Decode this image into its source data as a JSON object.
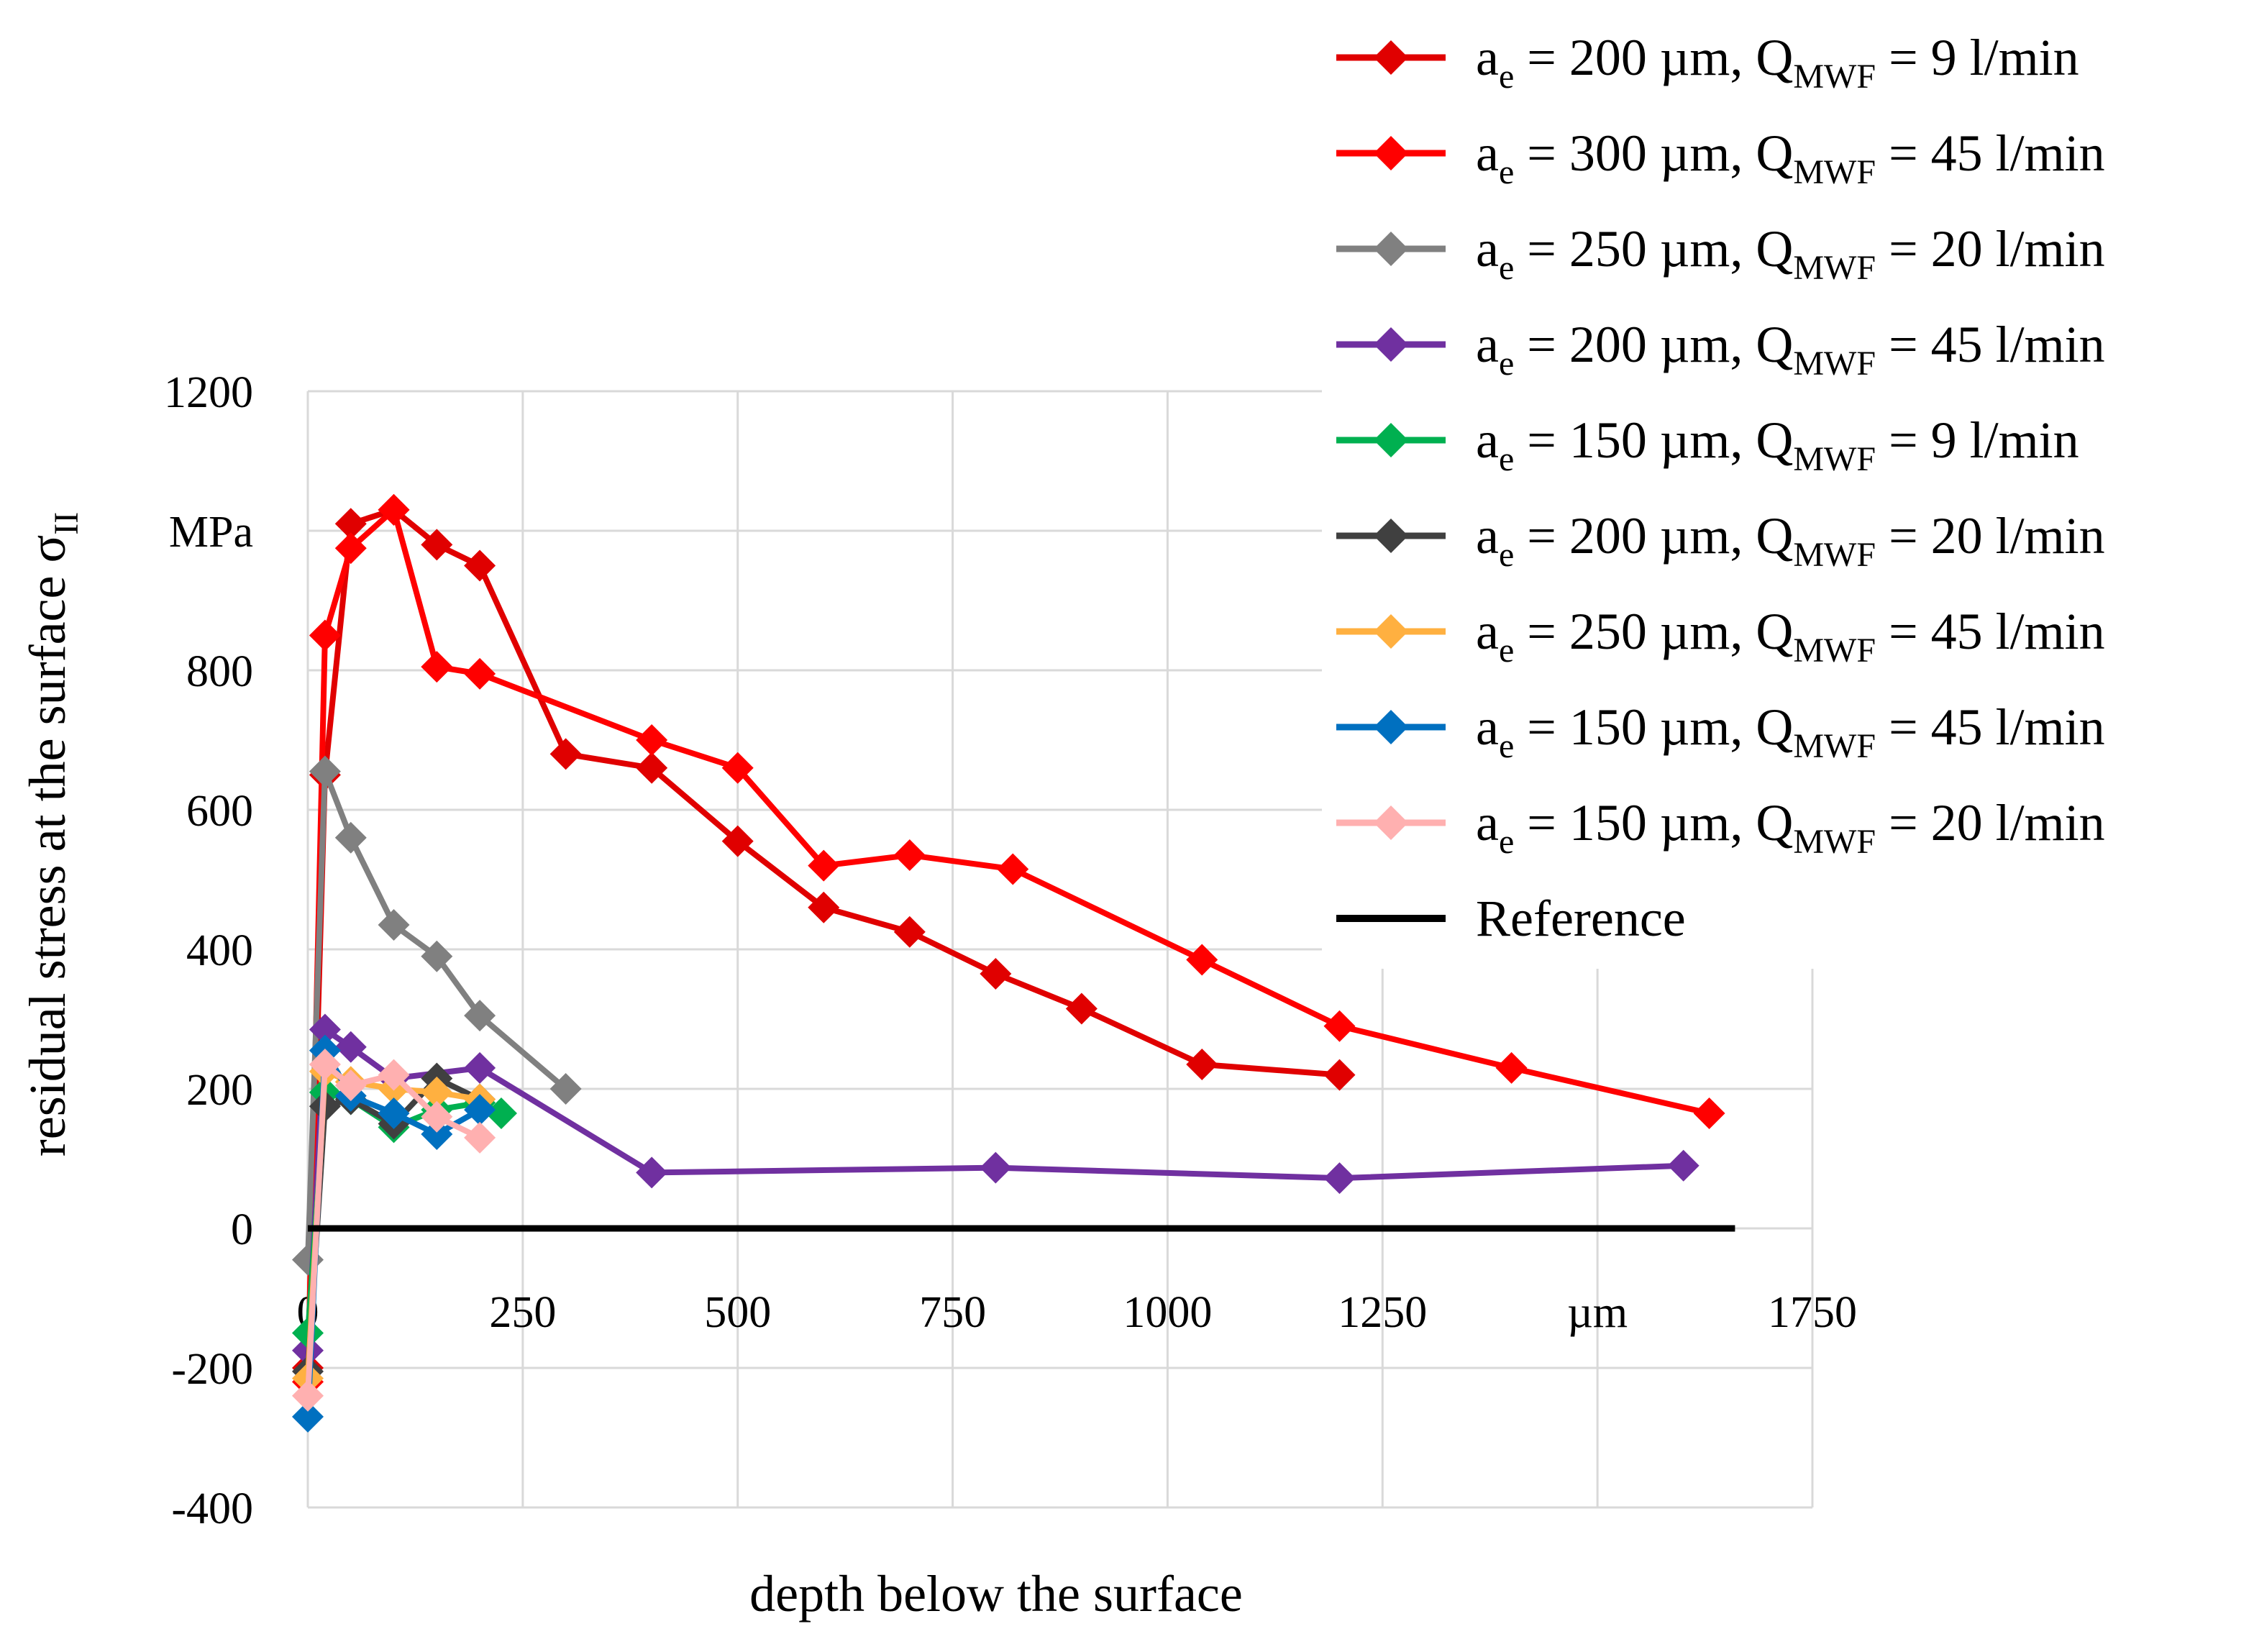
{
  "chart_data": {
    "type": "line",
    "title": "",
    "xlabel": "depth below the surface",
    "ylabel": "residual stress at the surface σ",
    "ylabel_subscript": "II",
    "y_unit": "MPa",
    "x_unit": "µm",
    "xlim": [
      0,
      1750
    ],
    "ylim": [
      -400,
      1200
    ],
    "x_ticks": [
      {
        "value": 0,
        "label": "0"
      },
      {
        "value": 250,
        "label": "250"
      },
      {
        "value": 500,
        "label": "500"
      },
      {
        "value": 750,
        "label": "750"
      },
      {
        "value": 1000,
        "label": "1000"
      },
      {
        "value": 1250,
        "label": "1250"
      },
      {
        "value": 1500,
        "label": "µm"
      },
      {
        "value": 1750,
        "label": "1750"
      }
    ],
    "y_ticks": [
      {
        "value": -400,
        "label": "-400"
      },
      {
        "value": -200,
        "label": "-200"
      },
      {
        "value": 0,
        "label": "0"
      },
      {
        "value": 200,
        "label": "200"
      },
      {
        "value": 400,
        "label": "400"
      },
      {
        "value": 600,
        "label": "600"
      },
      {
        "value": 800,
        "label": "800"
      },
      {
        "value": 1000,
        "label": "MPa"
      },
      {
        "value": 1200,
        "label": "1200"
      }
    ],
    "grid": true,
    "legend_position": "top-right",
    "series": [
      {
        "name": "a_e = 200 µm, Q_MWF = 9 l/min",
        "legend_main": "a",
        "legend_sub1": "e",
        "legend_mid": " = 200 µm, Q",
        "legend_sub2": "MWF",
        "legend_tail": " = 9 l/min",
        "color": "#e00000",
        "marker": "diamond",
        "x": [
          0,
          20,
          50,
          100,
          150,
          200,
          300,
          400,
          500,
          600,
          700,
          800,
          900,
          1040,
          1200
        ],
        "y": [
          -200,
          650,
          1010,
          1030,
          980,
          950,
          680,
          660,
          555,
          460,
          425,
          365,
          315,
          235,
          220
        ]
      },
      {
        "name": "a_e = 300 µm, Q_MWF = 45 l/min",
        "legend_main": "a",
        "legend_sub1": "e",
        "legend_mid": " = 300 µm, Q",
        "legend_sub2": "MWF",
        "legend_tail": " = 45 l/min",
        "color": "#ff0000",
        "marker": "diamond",
        "x": [
          0,
          20,
          50,
          100,
          150,
          200,
          400,
          500,
          600,
          700,
          820,
          1040,
          1200,
          1400,
          1630
        ],
        "y": [
          -220,
          850,
          975,
          1030,
          805,
          795,
          700,
          660,
          520,
          535,
          515,
          385,
          290,
          230,
          165
        ]
      },
      {
        "name": "a_e = 250 µm, Q_MWF = 20 l/min",
        "legend_main": "a",
        "legend_sub1": "e",
        "legend_mid": " = 250 µm, Q",
        "legend_sub2": "MWF",
        "legend_tail": " = 20 l/min",
        "color": "#808080",
        "marker": "diamond",
        "x": [
          0,
          20,
          50,
          100,
          150,
          200,
          300
        ],
        "y": [
          -45,
          655,
          560,
          435,
          390,
          305,
          200
        ]
      },
      {
        "name": "a_e = 200 µm, Q_MWF = 45 l/min",
        "legend_main": "a",
        "legend_sub1": "e",
        "legend_mid": " = 200 µm, Q",
        "legend_sub2": "MWF",
        "legend_tail": " = 45 l/min",
        "color": "#7030a0",
        "marker": "diamond",
        "x": [
          0,
          20,
          50,
          100,
          200,
          400,
          800,
          1200,
          1600
        ],
        "y": [
          -175,
          285,
          260,
          215,
          230,
          80,
          87,
          72,
          90
        ]
      },
      {
        "name": "a_e = 150 µm, Q_MWF = 9 l/min",
        "legend_main": "a",
        "legend_sub1": "e",
        "legend_mid": " = 150 µm, Q",
        "legend_sub2": "MWF",
        "legend_tail": " = 9 l/min",
        "color": "#00b050",
        "marker": "diamond",
        "x": [
          0,
          20,
          50,
          100,
          150,
          200,
          225
        ],
        "y": [
          -150,
          195,
          185,
          145,
          170,
          180,
          165
        ]
      },
      {
        "name": "a_e = 200 µm, Q_MWF = 20 l/min",
        "legend_main": "a",
        "legend_sub1": "e",
        "legend_mid": " = 200 µm, Q",
        "legend_sub2": "MWF",
        "legend_tail": " = 20 l/min",
        "color": "#404040",
        "marker": "diamond",
        "x": [
          0,
          20,
          50,
          100,
          150,
          200
        ],
        "y": [
          -205,
          175,
          185,
          150,
          215,
          185
        ]
      },
      {
        "name": "a_e = 250 µm, Q_MWF = 45 l/min",
        "legend_main": "a",
        "legend_sub1": "e",
        "legend_mid": " = 250 µm, Q",
        "legend_sub2": "MWF",
        "legend_tail": " = 45 l/min",
        "color": "#ffb040",
        "marker": "diamond",
        "x": [
          0,
          20,
          50,
          100,
          150,
          200
        ],
        "y": [
          -215,
          225,
          210,
          200,
          195,
          185
        ]
      },
      {
        "name": "a_e = 150 µm, Q_MWF = 45 l/min",
        "legend_main": "a",
        "legend_sub1": "e",
        "legend_mid": " = 150 µm, Q",
        "legend_sub2": "MWF",
        "legend_tail": " = 45 l/min",
        "color": "#0070c0",
        "marker": "diamond",
        "x": [
          0,
          20,
          50,
          100,
          150,
          200
        ],
        "y": [
          -270,
          255,
          190,
          165,
          135,
          170
        ]
      },
      {
        "name": "a_e = 150 µm, Q_MWF = 20 l/min",
        "legend_main": "a",
        "legend_sub1": "e",
        "legend_mid": " = 150 µm, Q",
        "legend_sub2": "MWF",
        "legend_tail": " = 20 l/min",
        "color": "#ffb0b0",
        "marker": "diamond",
        "x": [
          0,
          20,
          50,
          100,
          150,
          200
        ],
        "y": [
          -240,
          235,
          205,
          220,
          160,
          130
        ]
      },
      {
        "name": "Reference",
        "legend_main": "Reference",
        "color": "#000000",
        "marker": "none",
        "x": [
          0,
          1660
        ],
        "y": [
          0,
          0
        ]
      }
    ]
  }
}
